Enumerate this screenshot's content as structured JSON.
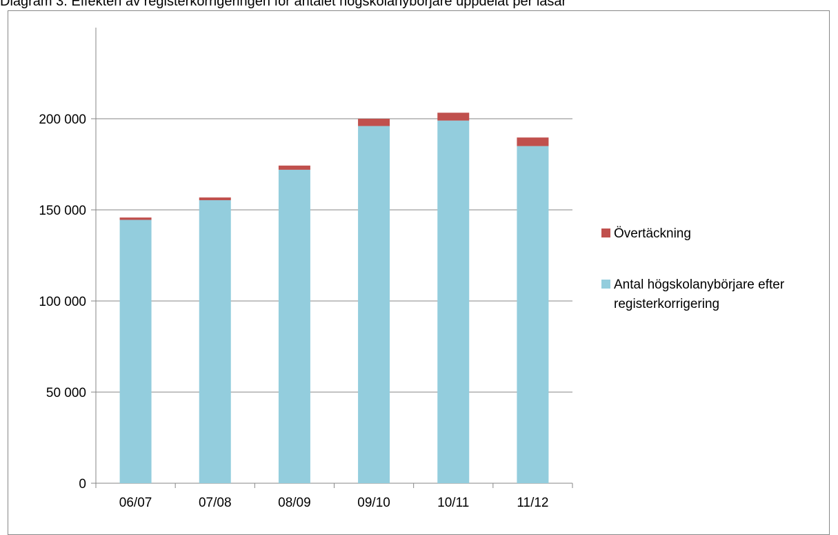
{
  "caption": "Diagram 3. Effekten av registerkorrigeringen för antalet högskolanybörjare uppdelat per läsår",
  "colors": {
    "overcoverage": "#C0504D",
    "corrected": "#93CDDD",
    "gridline": "#868686",
    "axis": "#868686"
  },
  "chart_data": {
    "type": "bar",
    "stacked": true,
    "title": "",
    "xlabel": "",
    "ylabel": "",
    "categories": [
      "06/07",
      "07/08",
      "08/09",
      "09/10",
      "10/11",
      "11/12"
    ],
    "series": [
      {
        "name": "Antal högskolanybörjare efter registerkorrigering",
        "color": "#93CDDD",
        "values": [
          144500,
          155300,
          172000,
          196000,
          199000,
          185000
        ]
      },
      {
        "name": "Övertäckning",
        "color": "#C0504D",
        "values": [
          1300,
          1500,
          2300,
          4000,
          4300,
          4700
        ]
      }
    ],
    "ylim": [
      0,
      250000
    ],
    "yticks": [
      0,
      50000,
      100000,
      150000,
      200000
    ],
    "ytick_labels": [
      "0",
      "50 000",
      "100 000",
      "150 000",
      "200 000"
    ],
    "grid": "horizontal",
    "legend_position": "right"
  }
}
